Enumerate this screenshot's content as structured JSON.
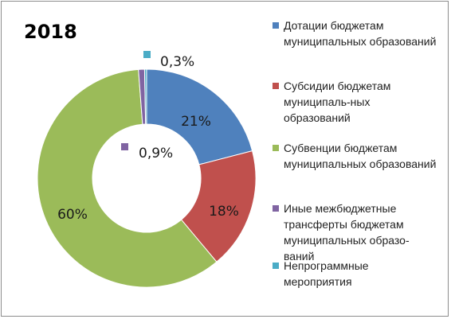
{
  "chart_data": {
    "type": "pie",
    "title": "2018",
    "donut": true,
    "legend_position": "right",
    "slices": [
      {
        "label": "Дотации бюджетам\nмуниципальных образований",
        "value": 21,
        "value_label": "21%",
        "color": "#4f81bd"
      },
      {
        "label": "Субсидии бюджетам\nмуниципаль-ных\nобразований",
        "value": 18,
        "value_label": "18%",
        "color": "#c0504d"
      },
      {
        "label": "Субвенции бюджетам\nмуниципальных образований",
        "value": 60,
        "value_label": "60%",
        "color": "#9bbb59"
      },
      {
        "label": "Иные межбюджетные\nтрансферты бюджетам\nмуниципальных образо-\nваний",
        "value": 0.9,
        "value_label": "0,9%",
        "color": "#8064a2"
      },
      {
        "label": "Непрограммные\nмероприятия",
        "value": 0.3,
        "value_label": "0,3%",
        "color": "#4bacc6"
      }
    ]
  }
}
